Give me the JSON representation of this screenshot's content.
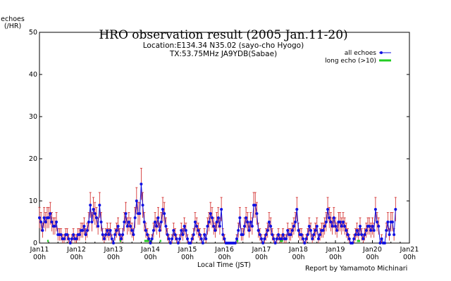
{
  "chart_data": {
    "type": "line",
    "title": "HRO observation result (2005 Jan.11-20)",
    "subtitle_lines": [
      "Location:E134.34 N35.02 (sayo-cho Hyogo)",
      "TX:53.75MHz JA9YDB(Sabae)"
    ],
    "ylabel_lines": [
      "echoes",
      "(/HR)"
    ],
    "xlabel": "Local Time (JST)",
    "credit": "Report by Yamamoto Michinari",
    "ylim": [
      0,
      50
    ],
    "yticks": [
      "0",
      "10",
      "20",
      "30",
      "40",
      "50"
    ],
    "xlim_days": [
      0,
      10
    ],
    "xticks": [
      {
        "day": "Jan11",
        "hour": "00h"
      },
      {
        "day": "Jan12",
        "hour": "00h"
      },
      {
        "day": "Jan13",
        "hour": "00h"
      },
      {
        "day": "Jan14",
        "hour": "00h"
      },
      {
        "day": "Jan15",
        "hour": "00h"
      },
      {
        "day": "Jan16",
        "hour": "00h"
      },
      {
        "day": "Jan17",
        "hour": "00h"
      },
      {
        "day": "Jan18",
        "hour": "00h"
      },
      {
        "day": "Jan19",
        "hour": "00h"
      },
      {
        "day": "Jan20",
        "hour": "00h"
      },
      {
        "day": "Jan21",
        "hour": "00h"
      }
    ],
    "legend_position": "top-right",
    "series": [
      {
        "name": "all echoes",
        "color": "#1010e0",
        "errorbar_color": "#d02020",
        "hours_per_point": 1,
        "values": [
          6,
          5,
          3,
          6,
          5,
          6,
          6,
          7,
          5,
          4,
          4,
          5,
          2,
          2,
          2,
          1,
          1,
          2,
          2,
          1,
          0,
          1,
          2,
          1,
          1,
          2,
          2,
          3,
          3,
          4,
          2,
          3,
          5,
          9,
          5,
          8,
          7,
          6,
          4,
          9,
          5,
          2,
          1,
          2,
          3,
          2,
          3,
          1,
          0,
          2,
          3,
          4,
          2,
          1,
          2,
          5,
          7,
          4,
          5,
          4,
          3,
          2,
          6,
          10,
          7,
          7,
          14,
          9,
          5,
          3,
          2,
          1,
          0,
          1,
          3,
          5,
          4,
          6,
          3,
          5,
          8,
          7,
          4,
          2,
          1,
          0,
          1,
          3,
          2,
          1,
          0,
          1,
          3,
          2,
          4,
          3,
          1,
          0,
          0,
          1,
          2,
          5,
          4,
          3,
          2,
          1,
          0,
          2,
          1,
          4,
          5,
          7,
          6,
          4,
          3,
          5,
          6,
          4,
          8,
          2,
          1,
          0,
          0,
          0,
          0,
          0,
          0,
          0,
          1,
          3,
          6,
          2,
          2,
          4,
          6,
          5,
          3,
          5,
          4,
          9,
          9,
          7,
          3,
          2,
          1,
          0,
          1,
          2,
          3,
          5,
          4,
          2,
          1,
          0,
          1,
          2,
          1,
          1,
          2,
          1,
          1,
          3,
          2,
          2,
          3,
          4,
          5,
          8,
          3,
          2,
          2,
          1,
          0,
          1,
          2,
          4,
          3,
          1,
          2,
          3,
          4,
          1,
          2,
          3,
          3,
          4,
          5,
          8,
          6,
          5,
          4,
          6,
          4,
          3,
          5,
          5,
          4,
          5,
          4,
          3,
          2,
          1,
          0,
          0,
          1,
          2,
          3,
          2,
          4,
          2,
          1,
          2,
          3,
          4,
          4,
          3,
          4,
          3,
          8,
          5,
          4,
          0,
          1,
          0,
          0,
          3,
          5,
          2,
          5,
          5,
          2,
          8
        ],
        "note": "values read approximately from markers"
      },
      {
        "name": "long echo (>10)",
        "color": "#22cc22",
        "segments_hours": [
          [
            5,
            6
          ],
          [
            52,
            53
          ],
          [
            68,
            71
          ],
          [
            72,
            73
          ],
          [
            78,
            79
          ],
          [
            128,
            129
          ],
          [
            156,
            158
          ],
          [
            206,
            208
          ]
        ]
      }
    ]
  }
}
